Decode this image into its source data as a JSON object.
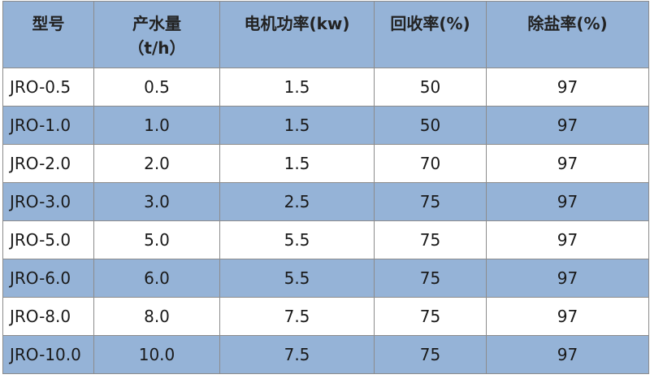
{
  "table": {
    "header": [
      [
        "型号"
      ],
      [
        "产水量",
        "（t/h）"
      ],
      [
        "电机功率(kw)"
      ],
      [
        "回收率(%)"
      ],
      [
        "除盐率(%)"
      ]
    ],
    "rows": [
      [
        "JRO-0.5",
        "0.5",
        "1.5",
        "50",
        "97"
      ],
      [
        "JRO-1.0",
        "1.0",
        "1.5",
        "50",
        "97"
      ],
      [
        "JRO-2.0",
        "2.0",
        "1.5",
        "70",
        "97"
      ],
      [
        "JRO-3.0",
        "3.0",
        "2.5",
        "75",
        "97"
      ],
      [
        "JRO-5.0",
        "5.0",
        "5.5",
        "75",
        "97"
      ],
      [
        "JRO-6.0",
        "6.0",
        "5.5",
        "75",
        "97"
      ],
      [
        "JRO-8.0",
        "8.0",
        "7.5",
        "75",
        "97"
      ],
      [
        "JRO-10.0",
        "10.0",
        "7.5",
        "75",
        "97"
      ]
    ]
  }
}
